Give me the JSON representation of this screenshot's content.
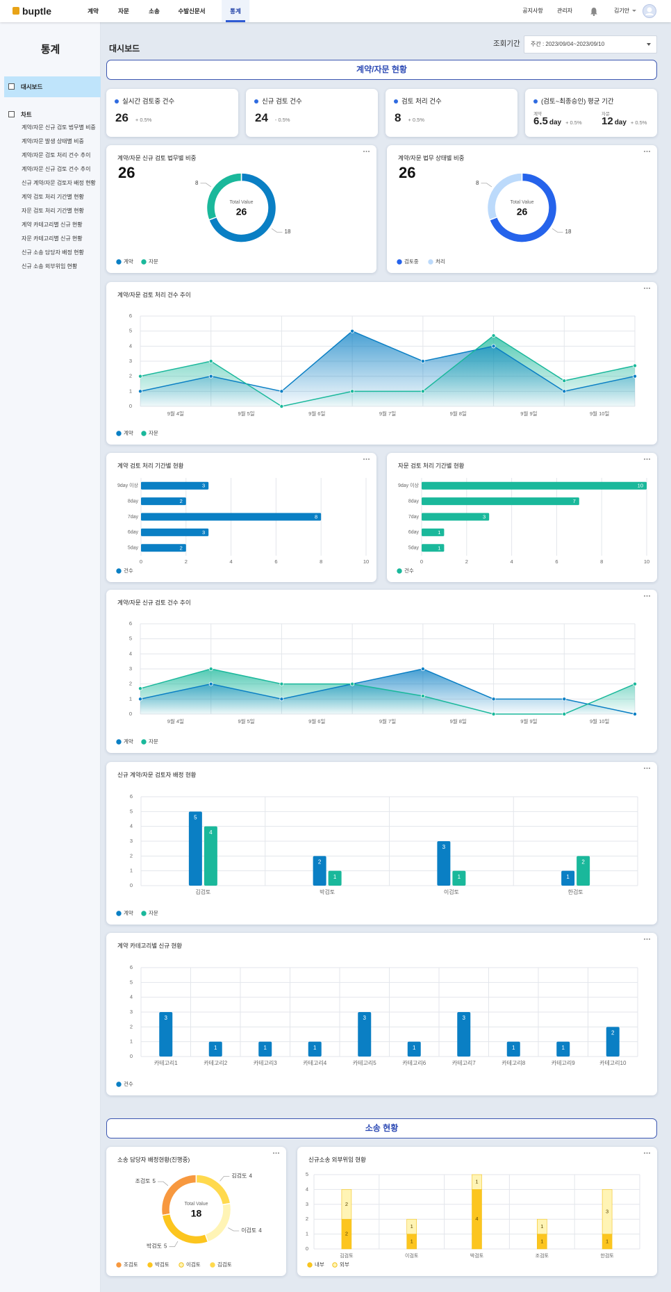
{
  "nav": {
    "logo": "buptle",
    "menu": [
      "계약",
      "자문",
      "소송",
      "수발신문서",
      "통계"
    ],
    "active": 4,
    "links": [
      "공지사항",
      "관리자"
    ],
    "user": "김기안"
  },
  "sidebar": {
    "title": "통계",
    "items": [
      "대시보드",
      "차트"
    ],
    "active": 0,
    "links": [
      "계약/자문 신규 검토 법무별 비중",
      "계약/자문 발생 상태별 비중",
      "계약/자문 검토 처리 건수 추이",
      "계약/자문 신규 검토 건수 추이",
      "신규 계약/자문 검토자 배정 현황",
      "계약 검토 처리 기간별 현황",
      "자문 검토 처리 기간별 현황",
      "계약 카테고리별 신규 현황",
      "자문 카테고리별 신규 현황",
      "신규 소송 담당자 배정 현황",
      "신규 소송 외부위임 현황"
    ]
  },
  "page_title": "대시보드",
  "period": {
    "label": "조회기간",
    "value": "주간 : 2023/09/04~2023/09/10"
  },
  "sections": [
    "계약/자문 현황",
    "소송 현황"
  ],
  "kpis": [
    {
      "label": "실시간 검토중 건수",
      "value": 26,
      "change": "+ 0.5%"
    },
    {
      "label": "신규 검토 건수",
      "value": 24,
      "change": "- 0.5%"
    },
    {
      "label": "검토 처리 건수",
      "value": 8,
      "change": "+ 0.5%"
    },
    {
      "label": "(검토~최종승인) 평균 기간",
      "items": [
        {
          "label": "계약",
          "value": 6.5,
          "unit": "day",
          "change": "+ 0.5%"
        },
        {
          "label": "자문",
          "value": 12,
          "unit": "day",
          "change": "+ 0.5%"
        }
      ]
    }
  ],
  "charts": [
    {
      "type": "donut",
      "title": "계약/자문 신규 검토 법무별 비중",
      "value": 26,
      "center_label": "Total Value",
      "total": 26,
      "categories": [
        "계약",
        "자문"
      ],
      "values": [
        18,
        8
      ],
      "colors": [
        "#0a7fc4",
        "#1ab89b"
      ],
      "direction": "clockwise"
    },
    {
      "type": "donut",
      "title": "계약/자문 법무 상태별 비중",
      "value": 26,
      "center_label": "Total Value",
      "total": 26,
      "categories": [
        "검토중",
        "처리"
      ],
      "values": [
        18,
        8
      ],
      "colors": [
        "#2563eb",
        "#bcdafb"
      ],
      "direction": "clockwise"
    },
    {
      "type": "area",
      "title": "계약/자문 검토 처리 건수 추이",
      "categories": [
        "9월 4일",
        "9월 5일",
        "9월 6일",
        "9월 7일",
        "9월 8일",
        "9월 9일",
        "9월 10일",
        null
      ],
      "series": [
        {
          "name": "계약",
          "color": "#0a7fc4",
          "values": [
            1,
            2,
            1,
            5,
            3,
            4,
            1,
            2
          ]
        },
        {
          "name": "자문",
          "color": "#1ab89b",
          "values": [
            2,
            3,
            0,
            1,
            1,
            4.7,
            1.7,
            2.7
          ]
        }
      ],
      "ylim": [
        0,
        6
      ],
      "yticks": [
        0,
        1,
        2,
        3,
        4,
        5,
        6
      ]
    },
    {
      "type": "hbar",
      "title": "계약 검토 처리 기간별 현황",
      "categories": [
        "9day 이상",
        "8day",
        "7day",
        "6day",
        "5day"
      ],
      "series": [
        {
          "name": "건수",
          "color": "#0a7fc4",
          "values": [
            3,
            2,
            8,
            3,
            2
          ]
        }
      ],
      "xlim": [
        0,
        10
      ],
      "xticks": [
        0,
        2,
        4,
        6,
        8,
        10
      ]
    },
    {
      "type": "hbar",
      "title": "자문 검토 처리 기간별 현황",
      "categories": [
        "9day 이상",
        "8day",
        "7day",
        "6day",
        "5day"
      ],
      "series": [
        {
          "name": "건수",
          "color": "#1ab89b",
          "values": [
            10,
            7,
            3,
            1,
            1
          ]
        }
      ],
      "xlim": [
        0,
        10
      ],
      "xticks": [
        0,
        2,
        4,
        6,
        8,
        10
      ]
    },
    {
      "type": "area",
      "title": "계약/자문 신규 검토 건수 추이",
      "categories": [
        "9월 4일",
        "9월 5일",
        "9월 6일",
        "9월 7일",
        "9월 8일",
        "9월 9일",
        "9월 10일",
        null
      ],
      "series": [
        {
          "name": "계약",
          "color": "#0a7fc4",
          "values": [
            1,
            2,
            1,
            2,
            3,
            1,
            1,
            0
          ]
        },
        {
          "name": "자문",
          "color": "#1ab89b",
          "values": [
            1.7,
            3,
            2,
            2,
            1.2,
            0,
            0,
            2
          ]
        }
      ],
      "ylim": [
        0,
        6
      ],
      "yticks": [
        0,
        1,
        2,
        3,
        4,
        5,
        6
      ]
    },
    {
      "type": "bar",
      "title": "신규 계약/자문 검토자 배정 현황",
      "categories": [
        "김검토",
        "박검토",
        "이검토",
        "한검토"
      ],
      "series": [
        {
          "name": "계약",
          "color": "#0a7fc4",
          "values": [
            5,
            2,
            3,
            1
          ]
        },
        {
          "name": "자문",
          "color": "#1ab89b",
          "values": [
            4,
            1,
            1,
            2
          ]
        }
      ],
      "ylim": [
        0,
        6
      ],
      "yticks": [
        0,
        1,
        2,
        3,
        4,
        5,
        6
      ]
    },
    {
      "type": "bar",
      "title": "계약 카테고리별 신규 현황",
      "categories": [
        "카테고리1",
        "카테고리2",
        "카테고리3",
        "카테고리4",
        "카테고리5",
        "카테고리6",
        "카테고리7",
        "카테고리8",
        "카테고리9",
        "카테고리10"
      ],
      "series": [
        {
          "name": "건수",
          "color": "#0a7fc4",
          "values": [
            3,
            1,
            1,
            1,
            3,
            1,
            3,
            1,
            1,
            2
          ]
        }
      ],
      "ylim": [
        0,
        6
      ],
      "yticks": [
        0,
        1,
        2,
        3,
        4,
        5,
        6
      ]
    },
    {
      "type": "donut",
      "title": "소송 담당자 배정현황(진행중)",
      "center_label": "Total Value",
      "total": 18,
      "categories": [
        "조검토",
        "박검토",
        "이검토",
        "김검토"
      ],
      "values": [
        5,
        5,
        4,
        4
      ],
      "colors": [
        "#f7983f",
        "#fcc51f",
        "#fff4b5",
        "#ffd94d"
      ],
      "direction": "counterclockwise"
    },
    {
      "type": "stacked_bar",
      "title": "신규소송 외부위임 현황",
      "categories": [
        "김검토",
        "이검토",
        "박검토",
        "조검토",
        "한검토"
      ],
      "series": [
        {
          "name": "내부",
          "color": "#fcc51f",
          "values": [
            2,
            1,
            4,
            1,
            1
          ]
        },
        {
          "name": "외부",
          "color": "#fff4b5",
          "values": [
            2,
            1,
            1,
            1,
            3
          ]
        }
      ],
      "ylim": [
        0,
        5
      ],
      "yticks": [
        0,
        1,
        2,
        3,
        4,
        5
      ]
    }
  ]
}
